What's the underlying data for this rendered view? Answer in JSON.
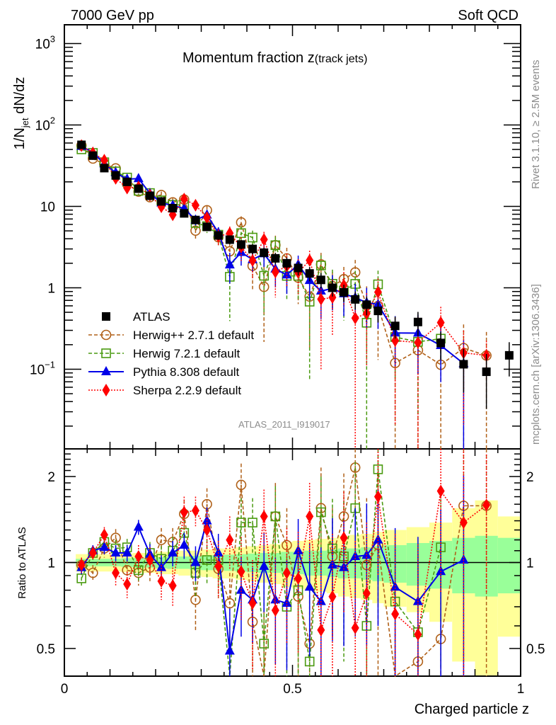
{
  "chart_data": {
    "type": "scatter",
    "header_left": "7000 GeV pp",
    "header_right": "Soft QCD",
    "title_main": "Momentum fraction ",
    "title_var": "z",
    "title_sub": "(track jets)",
    "ylabel_main_prefix": "1/N",
    "ylabel_main_sub": "jet",
    "ylabel_main_suffix": " dN/dz",
    "ylabel_ratio": "Ratio to ATLAS",
    "xlabel": "Charged particle z",
    "analysis_id": "ATLAS_2011_I919017",
    "side_label_top": "Rivet 3.1.10, ≥ 2.5M events",
    "side_label_bottom": "mcplots.cern.ch [arXiv:1306.3436]",
    "main_yscale": "log",
    "main_ylim": [
      0.0105,
      1700
    ],
    "main_yticks": [
      {
        "value": 1000,
        "label": "10",
        "sup": "3"
      },
      {
        "value": 100,
        "label": "10",
        "sup": "2"
      },
      {
        "value": 10,
        "label": "10",
        "sup": ""
      },
      {
        "value": 1,
        "label": "1",
        "sup": ""
      },
      {
        "value": 0.1,
        "label": "10",
        "sup": "−1"
      }
    ],
    "ratio_yscale": "log",
    "ratio_ylim": [
      0.4,
      2.5
    ],
    "ratio_yticks": [
      {
        "value": 2,
        "label": "2"
      },
      {
        "value": 1,
        "label": "1"
      },
      {
        "value": 0.5,
        "label": "0.5"
      }
    ],
    "xlim": [
      0,
      1
    ],
    "xticks": [
      {
        "value": 0,
        "label": "0"
      },
      {
        "value": 0.5,
        "label": "0.5"
      },
      {
        "value": 1,
        "label": "1"
      }
    ],
    "legend_position": "lower-left",
    "x": [
      0.0375,
      0.0625,
      0.0875,
      0.1125,
      0.1375,
      0.1625,
      0.1875,
      0.2125,
      0.2375,
      0.2625,
      0.2875,
      0.3125,
      0.3375,
      0.3625,
      0.3875,
      0.4125,
      0.4375,
      0.4625,
      0.4875,
      0.5125,
      0.5375,
      0.5625,
      0.5875,
      0.6125,
      0.6375,
      0.6625,
      0.6875,
      0.725,
      0.775,
      0.825,
      0.875,
      0.925,
      0.975
    ],
    "data": {
      "name": "ATLAS",
      "values": [
        57,
        42,
        29.5,
        24,
        20,
        16.5,
        13.5,
        11.5,
        9.5,
        8.2,
        6.8,
        5.6,
        4.4,
        3.9,
        3.4,
        3.0,
        2.7,
        2.3,
        2.0,
        1.75,
        1.5,
        1.25,
        1.0,
        0.88,
        0.72,
        0.62,
        0.52,
        0.34,
        0.38,
        0.21,
        0.115,
        0.093,
        0.148
      ],
      "rel_err_stat": [
        0.03,
        0.03,
        0.03,
        0.03,
        0.035,
        0.04,
        0.04,
        0.045,
        0.05,
        0.05,
        0.055,
        0.06,
        0.06,
        0.065,
        0.07,
        0.075,
        0.08,
        0.08,
        0.09,
        0.09,
        0.1,
        0.1,
        0.11,
        0.12,
        0.12,
        0.13,
        0.14,
        0.15,
        0.17,
        0.19,
        0.22,
        0.24,
        0.22
      ],
      "rel_err_tot": [
        0.07,
        0.07,
        0.07,
        0.07,
        0.075,
        0.08,
        0.08,
        0.09,
        0.09,
        0.1,
        0.1,
        0.11,
        0.12,
        0.12,
        0.13,
        0.14,
        0.15,
        0.16,
        0.18,
        0.19,
        0.2,
        0.21,
        0.22,
        0.24,
        0.25,
        0.26,
        0.28,
        0.3,
        0.33,
        0.38,
        0.55,
        0.65,
        0.45
      ],
      "color": "#000000"
    },
    "series": [
      {
        "name": "Herwig++ 2.7.1 default",
        "marker": "open-circle",
        "line": "dashed",
        "color": "#b06018",
        "ratio": [
          0.98,
          0.92,
          1.12,
          1.22,
          0.94,
          0.92,
          0.96,
          1.2,
          1.18,
          1.48,
          0.74,
          1.6,
          0.95,
          0.72,
          1.87,
          0.62,
          0.38,
          1.45,
          1.15,
          0.76,
          0.52,
          1.55,
          1.05,
          1.45,
          2.15,
          0.98,
          1.15,
          0.35,
          0.45,
          0.54,
          1.58,
          1.58,
          null
        ],
        "err": [
          0.06,
          0.06,
          0.08,
          0.09,
          0.08,
          0.09,
          0.1,
          0.12,
          0.14,
          0.18,
          0.16,
          0.22,
          0.2,
          0.2,
          0.35,
          0.3,
          0.3,
          0.45,
          0.4,
          0.4,
          0.4,
          0.6,
          0.5,
          0.6,
          0.9,
          0.7,
          0.9,
          0.5,
          0.6,
          0.6,
          1.5,
          1.5,
          null
        ]
      },
      {
        "name": "Herwig 7.2.1 default",
        "marker": "open-square",
        "line": "dashed",
        "color": "#4a9a10",
        "ratio": [
          0.88,
          1.08,
          1.18,
          1.12,
          1.13,
          0.94,
          1.08,
          1.03,
          1.1,
          1.27,
          0.92,
          1.02,
          1.02,
          0.35,
          1.38,
          1.38,
          0.52,
          1.45,
          0.7,
          0.8,
          0.45,
          1.5,
          1.12,
          1.05,
          1.55,
          0.6,
          2.12,
          0.73,
          0.57,
          1.13,
          null,
          null,
          null
        ],
        "err": [
          0.05,
          0.06,
          0.07,
          0.08,
          0.08,
          0.08,
          0.1,
          0.11,
          0.13,
          0.14,
          0.16,
          0.18,
          0.2,
          0.25,
          0.3,
          0.3,
          0.35,
          0.4,
          0.35,
          0.4,
          0.4,
          0.5,
          0.55,
          0.6,
          0.7,
          0.6,
          1.0,
          0.5,
          0.5,
          0.7,
          null,
          null,
          null
        ]
      },
      {
        "name": "Pythia 8.308 default",
        "marker": "filled-triangle",
        "line": "solid",
        "color": "#0000e8",
        "ratio": [
          0.96,
          1.1,
          1.13,
          1.08,
          1.08,
          1.33,
          1.07,
          0.96,
          1.08,
          1.15,
          1.0,
          1.4,
          1.08,
          0.49,
          0.8,
          0.74,
          0.97,
          0.74,
          0.72,
          1.1,
          0.82,
          0.73,
          0.98,
          0.96,
          1.05,
          1.06,
          1.2,
          0.82,
          0.73,
          0.93,
          1.02,
          null,
          null
        ],
        "err": [
          0.05,
          0.05,
          0.06,
          0.07,
          0.07,
          0.08,
          0.09,
          0.1,
          0.11,
          0.12,
          0.14,
          0.16,
          0.18,
          0.2,
          0.25,
          0.22,
          0.3,
          0.3,
          0.3,
          0.32,
          0.35,
          0.4,
          0.45,
          0.45,
          0.5,
          0.55,
          0.6,
          0.5,
          0.5,
          0.6,
          1.0,
          null,
          null
        ]
      },
      {
        "name": "Sherpa 2.2.9 default",
        "marker": "filled-diamond",
        "line": "dotted",
        "color": "#ff0000",
        "ratio": [
          0.98,
          1.08,
          1.25,
          0.92,
          0.84,
          1.05,
          1.02,
          0.86,
          0.83,
          1.5,
          1.52,
          1.3,
          0.97,
          1.2,
          0.93,
          0.72,
          1.45,
          0.68,
          0.92,
          0.88,
          1.45,
          0.58,
          0.76,
          1.22,
          0.59,
          0.78,
          1.7,
          0.66,
          0.56,
          1.78,
          1.38,
          1.59,
          null
        ],
        "err": [
          0.06,
          0.06,
          0.08,
          0.09,
          0.09,
          0.1,
          0.11,
          0.12,
          0.13,
          0.2,
          0.18,
          0.22,
          0.22,
          0.25,
          0.3,
          0.3,
          0.35,
          0.35,
          0.4,
          0.4,
          0.45,
          0.5,
          0.5,
          0.55,
          0.6,
          0.6,
          0.8,
          0.6,
          0.6,
          1.0,
          1.2,
          0.8,
          null
        ]
      }
    ]
  }
}
